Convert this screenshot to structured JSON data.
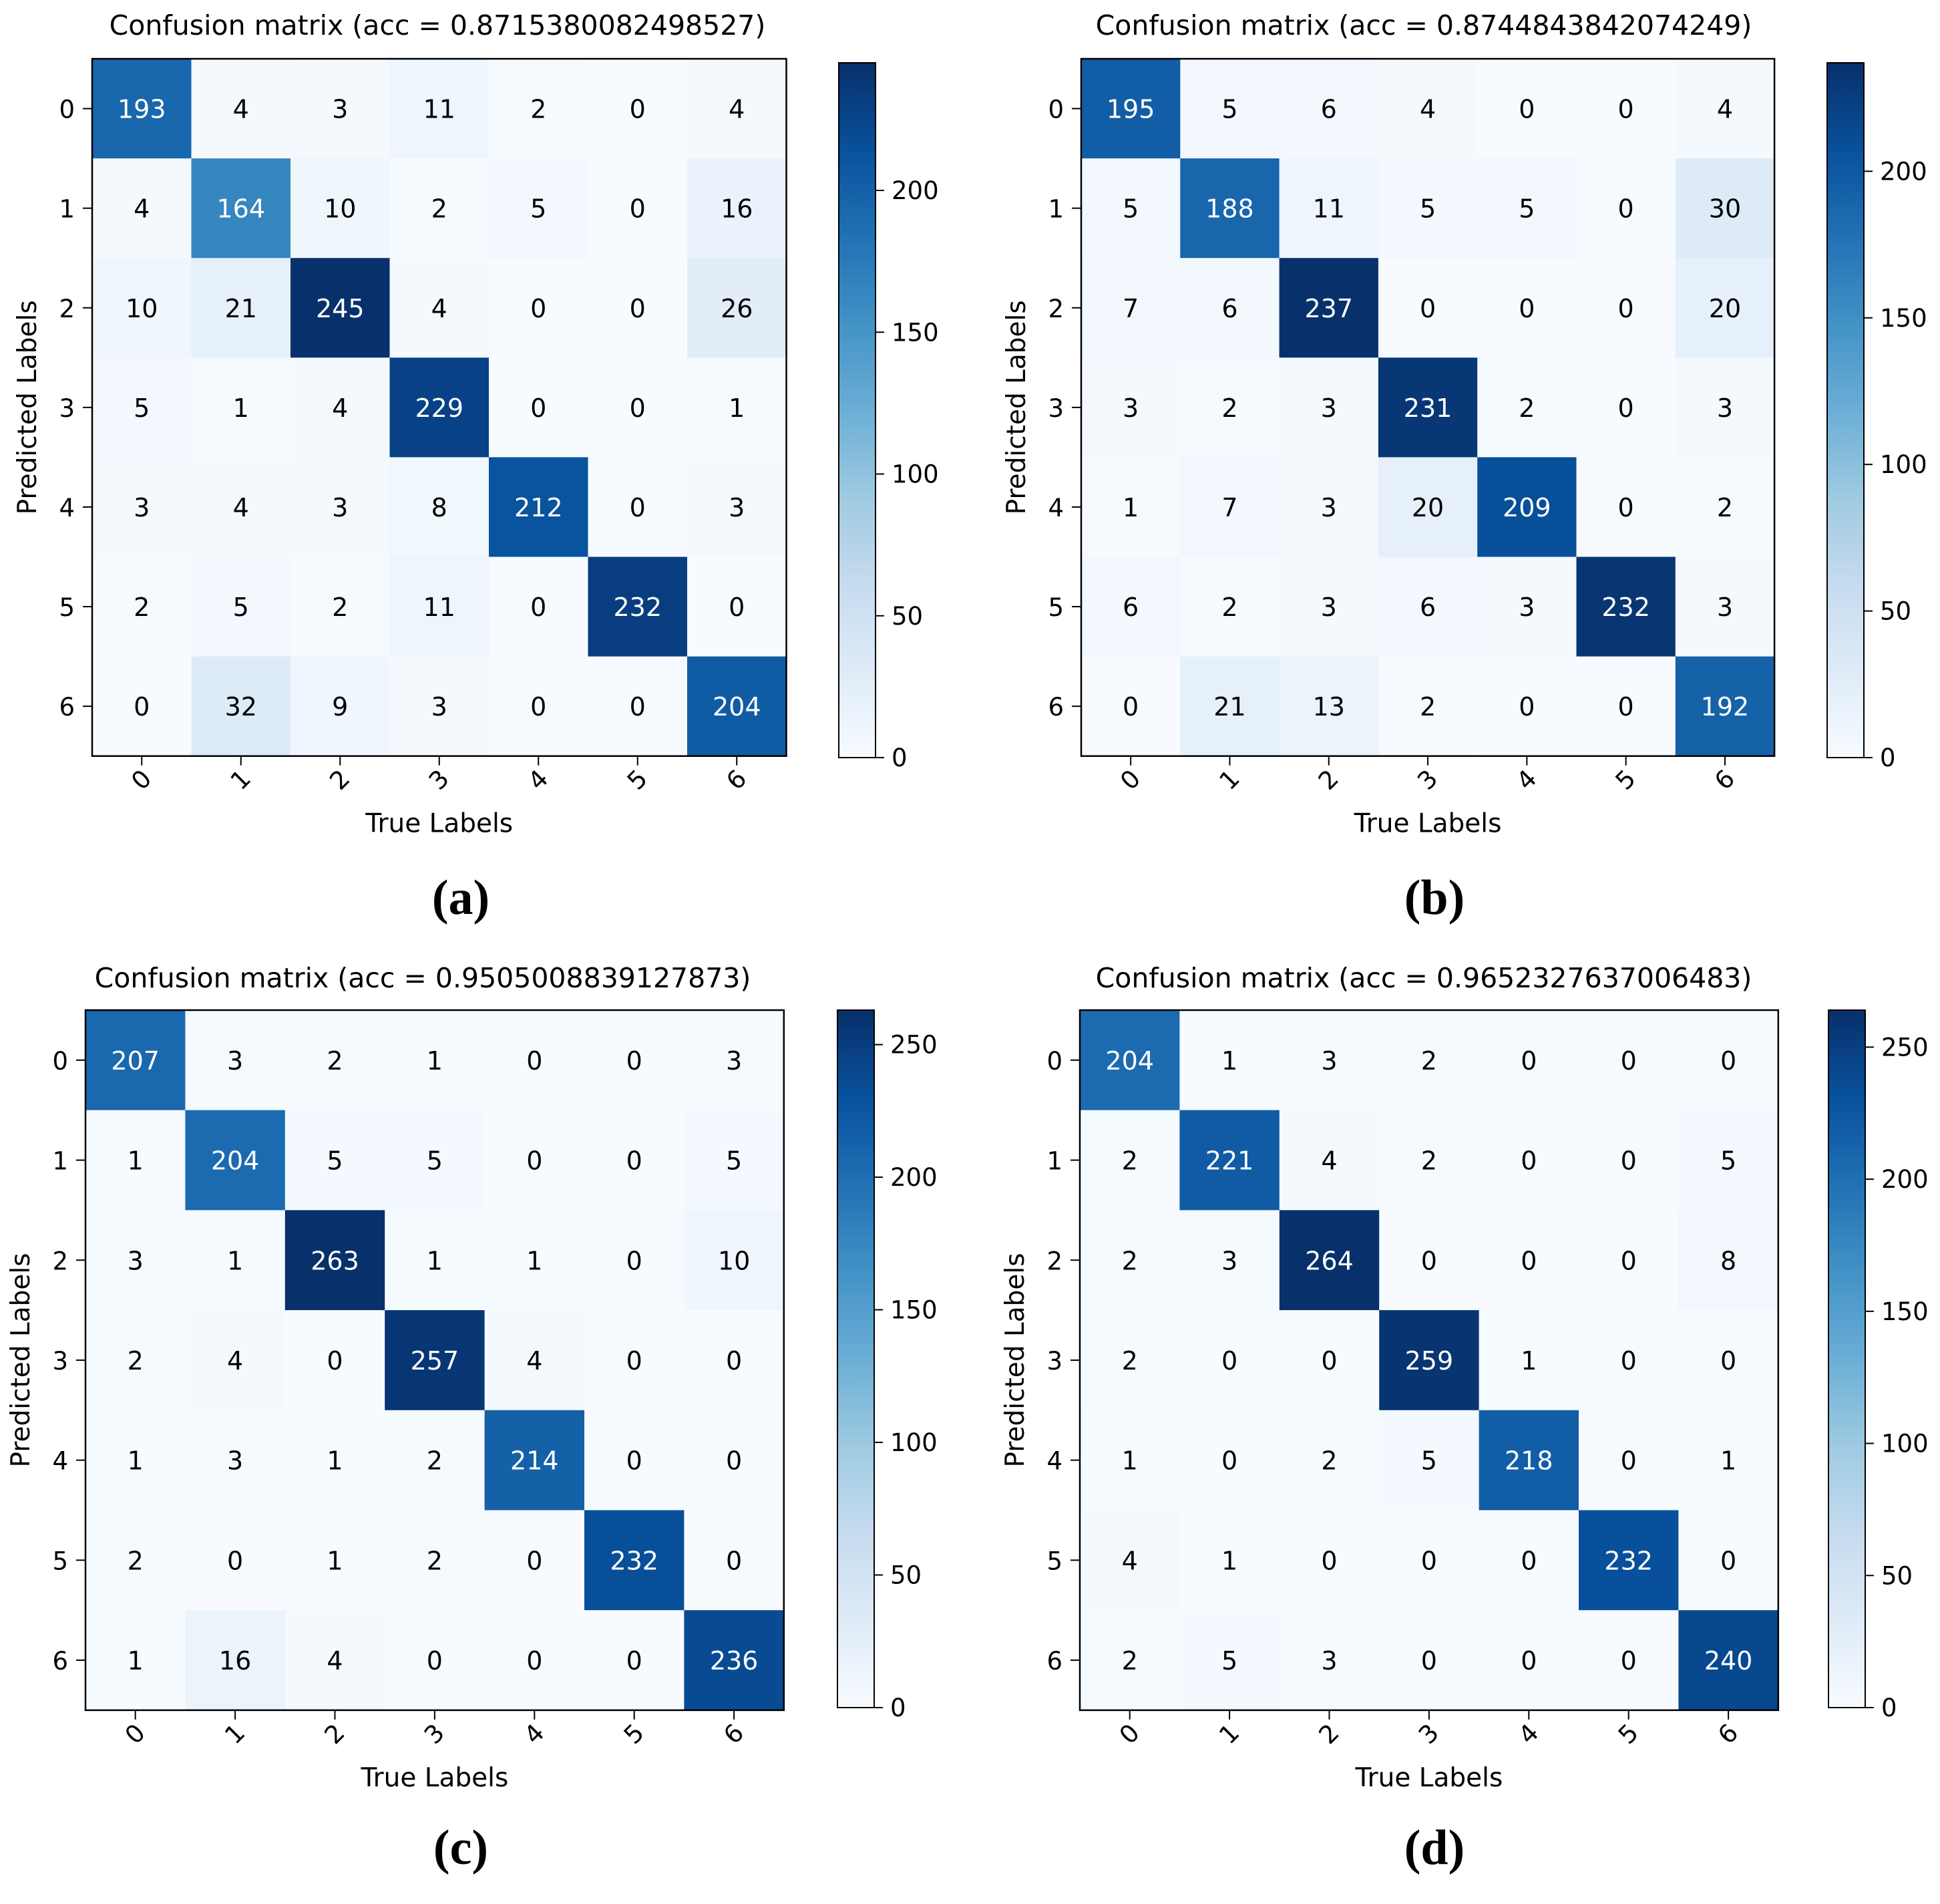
{
  "colors": {
    "cmap_low": "#f7fbff",
    "cmap_mid1": "#deebf7",
    "cmap_mid2": "#c6dbef",
    "cmap_mid3": "#9ecae1",
    "cmap_mid4": "#6baed6",
    "cmap_mid5": "#4292c6",
    "cmap_mid6": "#2171b5",
    "cmap_mid7": "#08519c",
    "cmap_high": "#08306b",
    "text_dark": "#000000",
    "text_light": "#ffffff"
  },
  "chart_data": [
    {
      "type": "heatmap",
      "caption": "(a)",
      "title": "Confusion matrix (acc = 0.8715380082498527)",
      "xlabel": "True Labels",
      "ylabel": "Predicted Labels",
      "x_ticks": [
        "0",
        "1",
        "2",
        "3",
        "4",
        "5",
        "6"
      ],
      "y_ticks": [
        "0",
        "1",
        "2",
        "3",
        "4",
        "5",
        "6"
      ],
      "colorbar": {
        "min": 0,
        "max": 245,
        "ticks": [
          0,
          50,
          100,
          150,
          200
        ]
      },
      "matrix": [
        [
          193,
          4,
          3,
          11,
          2,
          0,
          4
        ],
        [
          4,
          164,
          10,
          2,
          5,
          0,
          16
        ],
        [
          10,
          21,
          245,
          4,
          0,
          0,
          26
        ],
        [
          5,
          1,
          4,
          229,
          0,
          0,
          1
        ],
        [
          3,
          4,
          3,
          8,
          212,
          0,
          3
        ],
        [
          2,
          5,
          2,
          11,
          0,
          232,
          0
        ],
        [
          0,
          32,
          9,
          3,
          0,
          0,
          204
        ]
      ]
    },
    {
      "type": "heatmap",
      "caption": "(b)",
      "title": "Confusion matrix (acc = 0.8744843842074249)",
      "xlabel": "True Labels",
      "ylabel": "Predicted Labels",
      "x_ticks": [
        "0",
        "1",
        "2",
        "3",
        "4",
        "5",
        "6"
      ],
      "y_ticks": [
        "0",
        "1",
        "2",
        "3",
        "4",
        "5",
        "6"
      ],
      "colorbar": {
        "min": 0,
        "max": 237,
        "ticks": [
          0,
          50,
          100,
          150,
          200
        ]
      },
      "matrix": [
        [
          195,
          5,
          6,
          4,
          0,
          0,
          4
        ],
        [
          5,
          188,
          11,
          5,
          5,
          0,
          30
        ],
        [
          7,
          6,
          237,
          0,
          0,
          0,
          20
        ],
        [
          3,
          2,
          3,
          231,
          2,
          0,
          3
        ],
        [
          1,
          7,
          3,
          20,
          209,
          0,
          2
        ],
        [
          6,
          2,
          3,
          6,
          3,
          232,
          3
        ],
        [
          0,
          21,
          13,
          2,
          0,
          0,
          192
        ]
      ]
    },
    {
      "type": "heatmap",
      "caption": "(c)",
      "title": "Confusion matrix (acc = 0.9505008839127873)",
      "xlabel": "True Labels",
      "ylabel": "Predicted Labels",
      "x_ticks": [
        "0",
        "1",
        "2",
        "3",
        "4",
        "5",
        "6"
      ],
      "y_ticks": [
        "0",
        "1",
        "2",
        "3",
        "4",
        "5",
        "6"
      ],
      "colorbar": {
        "min": 0,
        "max": 263,
        "ticks": [
          0,
          50,
          100,
          150,
          200,
          250
        ]
      },
      "matrix": [
        [
          207,
          3,
          2,
          1,
          0,
          0,
          3
        ],
        [
          1,
          204,
          5,
          5,
          0,
          0,
          5
        ],
        [
          3,
          1,
          263,
          1,
          1,
          0,
          10
        ],
        [
          2,
          4,
          0,
          257,
          4,
          0,
          0
        ],
        [
          1,
          3,
          1,
          2,
          214,
          0,
          0
        ],
        [
          2,
          0,
          1,
          2,
          0,
          232,
          0
        ],
        [
          1,
          16,
          4,
          0,
          0,
          0,
          236
        ]
      ]
    },
    {
      "type": "heatmap",
      "caption": "(d)",
      "title": "Confusion matrix (acc = 0.9652327637006483)",
      "xlabel": "True Labels",
      "ylabel": "Predicted Labels",
      "x_ticks": [
        "0",
        "1",
        "2",
        "3",
        "4",
        "5",
        "6"
      ],
      "y_ticks": [
        "0",
        "1",
        "2",
        "3",
        "4",
        "5",
        "6"
      ],
      "colorbar": {
        "min": 0,
        "max": 264,
        "ticks": [
          0,
          50,
          100,
          150,
          200,
          250
        ]
      },
      "matrix": [
        [
          204,
          1,
          3,
          2,
          0,
          0,
          0
        ],
        [
          2,
          221,
          4,
          2,
          0,
          0,
          5
        ],
        [
          2,
          3,
          264,
          0,
          0,
          0,
          8
        ],
        [
          2,
          0,
          0,
          259,
          1,
          0,
          0
        ],
        [
          1,
          0,
          2,
          5,
          218,
          0,
          1
        ],
        [
          4,
          1,
          0,
          0,
          0,
          232,
          0
        ],
        [
          2,
          5,
          3,
          0,
          0,
          0,
          240
        ]
      ]
    }
  ]
}
